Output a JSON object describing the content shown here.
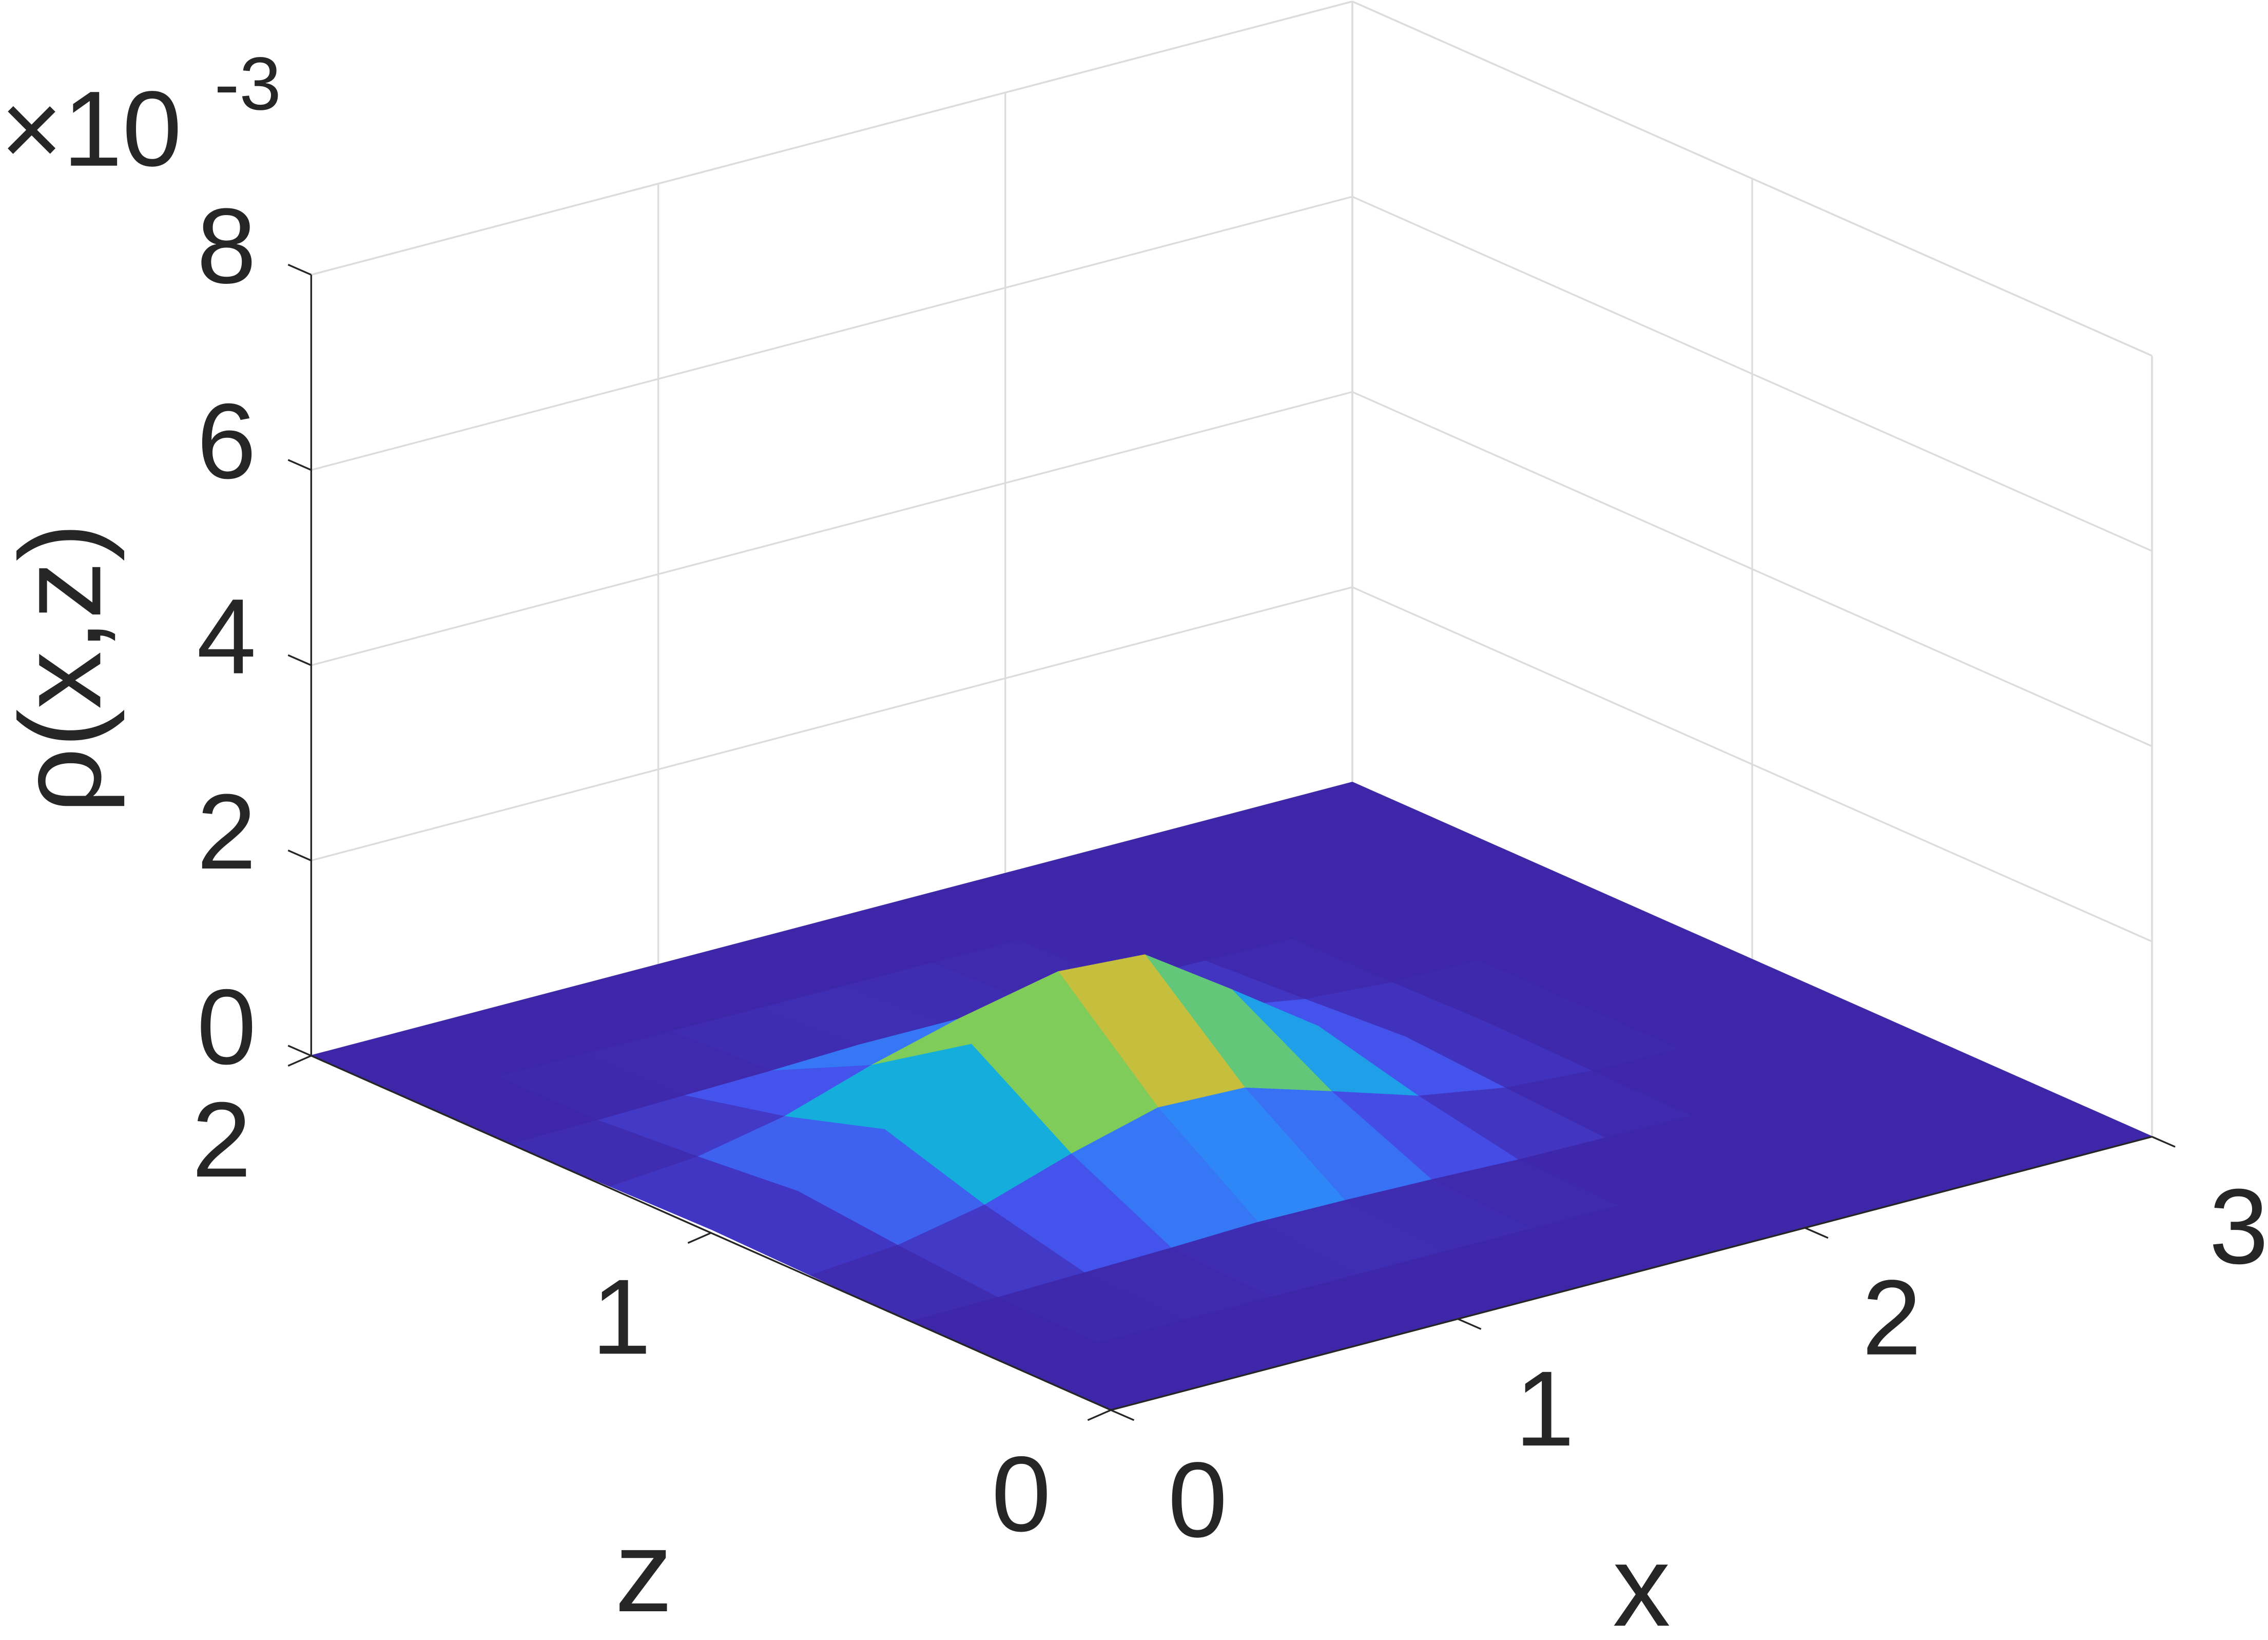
{
  "chart_data": {
    "type": "surface",
    "zlabel": "ρ(x,z)",
    "xlabel": "x",
    "ylabel": "z",
    "scale_base": "×10",
    "scale_exponent": "-3",
    "x": [
      0,
      0.25,
      0.5,
      0.75,
      1,
      1.25,
      1.5,
      1.75,
      2,
      2.25,
      2.5,
      2.75,
      3
    ],
    "y": [
      0,
      0.25,
      0.5,
      0.75,
      1,
      1.25,
      1.5,
      1.75,
      2
    ],
    "values": [
      [
        0,
        0,
        0,
        0,
        0,
        0,
        0,
        0,
        0,
        0,
        0,
        0,
        0
      ],
      [
        0,
        0,
        0,
        0,
        0,
        0,
        0,
        0,
        0,
        0,
        0,
        0,
        0
      ],
      [
        0,
        0.01,
        0.03,
        0.05,
        0.08,
        0.07,
        0.05,
        0.02,
        0.01,
        0,
        0,
        0,
        0
      ],
      [
        0.02,
        0.09,
        0.27,
        0.56,
        0.8,
        0.77,
        0.5,
        0.22,
        0.07,
        0.01,
        0,
        0,
        0
      ],
      [
        0.04,
        0.19,
        0.59,
        1.23,
        1.74,
        1.68,
        1.09,
        0.48,
        0.14,
        0.03,
        0,
        0,
        0
      ],
      [
        0.02,
        0.09,
        0.27,
        0.56,
        0.8,
        0.77,
        0.5,
        0.22,
        0.07,
        0.01,
        0,
        0,
        0
      ],
      [
        0,
        0.01,
        0.03,
        0.05,
        0.08,
        0.07,
        0.05,
        0.02,
        0.01,
        0,
        0,
        0,
        0
      ],
      [
        0,
        0,
        0,
        0,
        0,
        0,
        0,
        0,
        0,
        0,
        0,
        0,
        0
      ],
      [
        0,
        0,
        0,
        0,
        0,
        0,
        0,
        0,
        0,
        0,
        0,
        0,
        0
      ]
    ],
    "xlim": [
      0,
      3
    ],
    "ylim": [
      0,
      2
    ],
    "zlim": [
      0,
      8
    ],
    "xticks": [
      0,
      1,
      2,
      3
    ],
    "yticks": [
      0,
      1,
      2
    ],
    "zticks": [
      0,
      2,
      4,
      6,
      8
    ],
    "grid": true,
    "colormap": "parula"
  }
}
